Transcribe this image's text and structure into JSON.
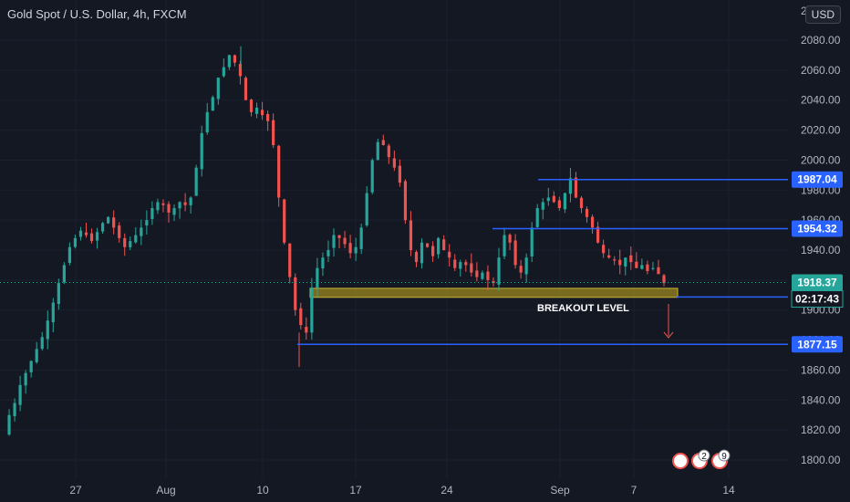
{
  "header": {
    "title": "Gold Spot / U.S. Dollar, 4h, FXCM",
    "currency": "USD"
  },
  "colors": {
    "background": "#141823",
    "up": "#26a69a",
    "down": "#ef5350",
    "line": "#2962ff",
    "tag_bg": "#2962ff",
    "price_tag_bg": "#26a69a",
    "zone": "#8a7a1e"
  },
  "chart_data": {
    "type": "candlestick",
    "ylim": [
      1790,
      2100
    ],
    "y_ticks": [
      1800,
      1820,
      1840,
      1860,
      1880,
      1900,
      1920,
      1940,
      1960,
      1980,
      2000,
      2020,
      2040,
      2060,
      2080
    ],
    "y_tick_labels": [
      "1800.00",
      "1820.00",
      "1840.00",
      "1860.00",
      "1880.00",
      "1900.00",
      "1920.00",
      "1940.00",
      "1960.00",
      "1980.00",
      "2000.00",
      "2020.00",
      "2040.00",
      "2060.00",
      "2080.00"
    ],
    "x_ticks": [
      "27",
      "Aug",
      "10",
      "17",
      "24",
      "Sep",
      "7",
      "14"
    ],
    "levels": [
      {
        "label": "1987.04",
        "value": 1987.04
      },
      {
        "label": "1954.32",
        "value": 1954.32
      },
      {
        "label": "1908.72",
        "value": 1908.72
      },
      {
        "label": "1877.15",
        "value": 1877.15
      }
    ],
    "current_price": {
      "label": "1918.37",
      "value": 1918.37
    },
    "countdown": "02:17:43",
    "annotations": [
      {
        "text": "BREAKOUT LEVEL"
      }
    ],
    "price_path": [
      1817,
      1830,
      1838,
      1850,
      1858,
      1866,
      1874,
      1882,
      1893,
      1905,
      1918,
      1930,
      1942,
      1948,
      1953,
      1950,
      1946,
      1952,
      1958,
      1962,
      1955,
      1948,
      1942,
      1946,
      1950,
      1955,
      1960,
      1968,
      1972,
      1970,
      1965,
      1968,
      1972,
      1970,
      1975,
      1995,
      2018,
      2032,
      2042,
      2055,
      2062,
      2070,
      2065,
      2056,
      2040,
      2032,
      2035,
      2030,
      2026,
      2010,
      1975,
      1945,
      1922,
      1900,
      1890,
      1885,
      1915,
      1928,
      1935,
      1940,
      1950,
      1948,
      1944,
      1938,
      1942,
      1955,
      1978,
      2000,
      2012,
      2010,
      2002,
      1995,
      1985,
      1960,
      1940,
      1932,
      1945,
      1942,
      1936,
      1948,
      1940,
      1935,
      1928,
      1932,
      1930,
      1925,
      1922,
      1925,
      1920,
      1918,
      1935,
      1950,
      1945,
      1930,
      1925,
      1935,
      1955,
      1968,
      1972,
      1975,
      1972,
      1968,
      1978,
      1988,
      1975,
      1968,
      1962,
      1955,
      1945,
      1938,
      1935,
      1933,
      1930,
      1935,
      1932,
      1928,
      1930,
      1926,
      1928,
      1924,
      1918
    ]
  }
}
